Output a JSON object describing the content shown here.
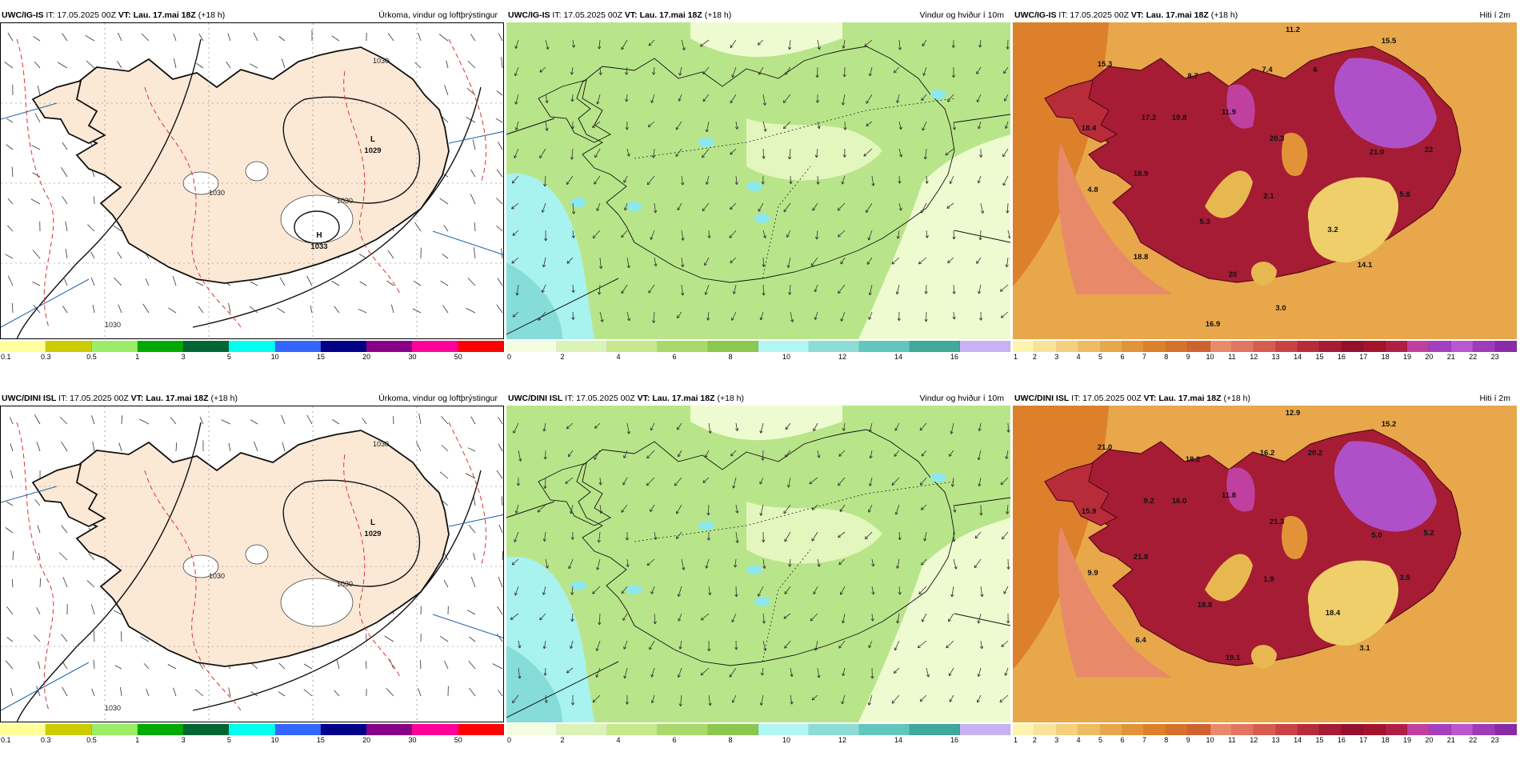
{
  "panels": [
    {
      "model": "UWC/IG-IS",
      "it": "IT: 17.05.2025 00Z",
      "vt_label": "VT:",
      "vt": "Lau. 17.mai 18Z",
      "lead": "(+18 h)",
      "title": "Úrkoma, vindur og loftþrýstingur",
      "type": "precip",
      "pressure_labels": [
        {
          "letter": "L",
          "value": "1029"
        },
        {
          "letter": "H",
          "value": "1033"
        }
      ],
      "isobar_labels": [
        "1030",
        "1030",
        "1030",
        "1030"
      ],
      "colorbar": {
        "colors": [
          "#ffff99",
          "#cccc00",
          "#99ee66",
          "#00aa00",
          "#006633",
          "#00ffee",
          "#3366ff",
          "#000088",
          "#880088",
          "#ff0099",
          "#ff0000"
        ],
        "ticks": [
          "0.1",
          "0.3",
          "0.5",
          "1",
          "3",
          "5",
          "10",
          "15",
          "20",
          "30",
          "50"
        ]
      }
    },
    {
      "model": "UWC/IG-IS",
      "it": "IT: 17.05.2025 00Z",
      "vt_label": "VT:",
      "vt": "Lau. 17.mai 18Z",
      "lead": "(+18 h)",
      "title": "Vindur og hviður í 10m",
      "type": "wind",
      "colorbar": {
        "colors": [
          "#f4fde0",
          "#dcf3b8",
          "#c6e98e",
          "#a9d96a",
          "#8cc850",
          "#b2f6f4",
          "#8edcd6",
          "#62c6bd",
          "#3fa99a",
          "#c9b2f4"
        ],
        "ticks": [
          "0",
          "2",
          "4",
          "6",
          "8",
          "10",
          "12",
          "14",
          "16"
        ]
      }
    },
    {
      "model": "UWC/IG-IS",
      "it": "IT: 17.05.2025 00Z",
      "vt_label": "VT:",
      "vt": "Lau. 17.mai 18Z",
      "lead": "(+18 h)",
      "title": "Hiti í 2m",
      "type": "temp",
      "values": [
        "11.2",
        "15.5",
        "15.3",
        "8.7",
        "7.4",
        "6",
        "17.2",
        "18.4",
        "19.8",
        "11.9",
        "20.3",
        "21.0",
        "22",
        "5.8",
        "4.8",
        "18.9",
        "2.1",
        "5.3",
        "3.2",
        "18.8",
        "20",
        "14.1",
        "3.0",
        "16.9"
      ],
      "colorbar": {
        "colors": [
          "#fff3b0",
          "#fbe29a",
          "#f5cf7c",
          "#efbb61",
          "#e8a74b",
          "#e29338",
          "#dc802b",
          "#d4712a",
          "#cf6330",
          "#e88a6a",
          "#e07560",
          "#d65c50",
          "#c94344",
          "#b82c3a",
          "#a51c34",
          "#93112f",
          "#a3142c",
          "#b01e46",
          "#c040a0",
          "#a53fc0",
          "#bb55d0",
          "#9f3ab8",
          "#8a2aa8"
        ],
        "ticks": [
          "1",
          "2",
          "3",
          "4",
          "5",
          "6",
          "7",
          "8",
          "9",
          "10",
          "11",
          "12",
          "13",
          "14",
          "15",
          "16",
          "17",
          "18",
          "19",
          "20",
          "21",
          "22",
          "23"
        ]
      }
    },
    {
      "model": "UWC/DINI ISL",
      "it": "IT: 17.05.2025 00Z",
      "vt_label": "VT:",
      "vt": "Lau. 17.mai 18Z",
      "lead": "(+18 h)",
      "title": "Úrkoma, vindur og loftþrýstingur",
      "type": "precip",
      "pressure_labels": [
        {
          "letter": "L",
          "value": "1029"
        }
      ],
      "isobar_labels": [
        "1030",
        "1030",
        "1030",
        "1030"
      ],
      "colorbar": {
        "colors": [
          "#ffff99",
          "#cccc00",
          "#99ee66",
          "#00aa00",
          "#006633",
          "#00ffee",
          "#3366ff",
          "#000088",
          "#880088",
          "#ff0099",
          "#ff0000"
        ],
        "ticks": [
          "0.1",
          "0.3",
          "0.5",
          "1",
          "3",
          "5",
          "10",
          "15",
          "20",
          "30",
          "50"
        ]
      }
    },
    {
      "model": "UWC/DINI ISL",
      "it": "IT: 17.05.2025 00Z",
      "vt_label": "VT:",
      "vt": "Lau. 17.mai 18Z",
      "lead": "(+18 h)",
      "title": "Vindur og hviður í 10m",
      "type": "wind",
      "colorbar": {
        "colors": [
          "#f4fde0",
          "#dcf3b8",
          "#c6e98e",
          "#a9d96a",
          "#8cc850",
          "#b2f6f4",
          "#8edcd6",
          "#62c6bd",
          "#3fa99a",
          "#c9b2f4"
        ],
        "ticks": [
          "0",
          "2",
          "4",
          "6",
          "8",
          "10",
          "12",
          "14",
          "16"
        ]
      }
    },
    {
      "model": "UWC/DINI ISL",
      "it": "IT: 17.05.2025 00Z",
      "vt_label": "VT:",
      "vt": "Lau. 17.mai 18Z",
      "lead": "(+18 h)",
      "title": "Hiti í 2m",
      "type": "temp",
      "values": [
        "12.9",
        "15.2",
        "21.0",
        "18.2",
        "16.2",
        "20.2",
        "9.2",
        "15.9",
        "16.0",
        "11.8",
        "21.3",
        "5.0",
        "5.2",
        "3.5",
        "9.9",
        "21.8",
        "1.9",
        "18.8",
        "18.4",
        "6.4",
        "19.1",
        "3.1"
      ],
      "colorbar": {
        "colors": [
          "#fff3b0",
          "#fbe29a",
          "#f5cf7c",
          "#efbb61",
          "#e8a74b",
          "#e29338",
          "#dc802b",
          "#d4712a",
          "#cf6330",
          "#e88a6a",
          "#e07560",
          "#d65c50",
          "#c94344",
          "#b82c3a",
          "#a51c34",
          "#93112f",
          "#a3142c",
          "#b01e46",
          "#c040a0",
          "#a53fc0",
          "#bb55d0",
          "#9f3ab8",
          "#8a2aa8"
        ],
        "ticks": [
          "1",
          "2",
          "3",
          "4",
          "5",
          "6",
          "7",
          "8",
          "9",
          "10",
          "11",
          "12",
          "13",
          "14",
          "15",
          "16",
          "17",
          "18",
          "19",
          "20",
          "21",
          "22",
          "23"
        ]
      }
    }
  ]
}
